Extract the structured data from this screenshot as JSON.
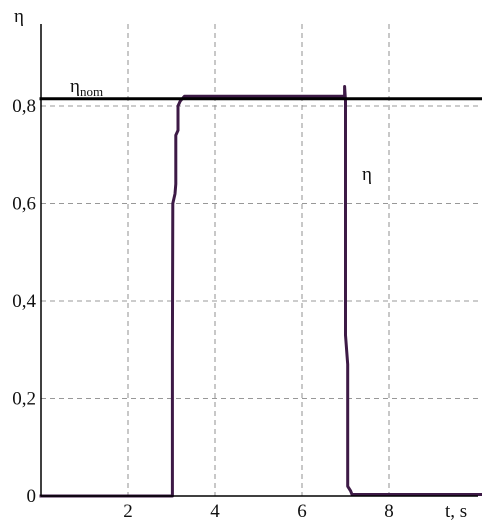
{
  "chart_data": {
    "type": "line",
    "ylabel": "η",
    "xlabel": "t, s",
    "xlim": [
      0,
      10.2
    ],
    "ylim": [
      0,
      0.85
    ],
    "x_ticks": [
      {
        "value": 2,
        "label": "2"
      },
      {
        "value": 4,
        "label": "4"
      },
      {
        "value": 6,
        "label": "6"
      },
      {
        "value": 8,
        "label": "8"
      }
    ],
    "y_ticks": [
      {
        "value": 0,
        "label": "0"
      },
      {
        "value": 0.2,
        "label": "0,2"
      },
      {
        "value": 0.4,
        "label": "0,4"
      },
      {
        "value": 0.6,
        "label": "0,6"
      },
      {
        "value": 0.8,
        "label": "0,8"
      }
    ],
    "grid": true,
    "series": [
      {
        "name": "η",
        "color": "#3d1a46",
        "points": [
          [
            0,
            0
          ],
          [
            3.02,
            0
          ],
          [
            3.02,
            0.3
          ],
          [
            3.03,
            0.6
          ],
          [
            3.08,
            0.62
          ],
          [
            3.1,
            0.64
          ],
          [
            3.1,
            0.74
          ],
          [
            3.15,
            0.75
          ],
          [
            3.15,
            0.8
          ],
          [
            3.2,
            0.81
          ],
          [
            3.3,
            0.82
          ],
          [
            6.98,
            0.82
          ],
          [
            6.98,
            0.84
          ],
          [
            7.0,
            0.81
          ],
          [
            7.0,
            0.33
          ],
          [
            7.05,
            0.27
          ],
          [
            7.05,
            0.02
          ],
          [
            7.12,
            0.01
          ],
          [
            7.15,
            0.003
          ],
          [
            10.2,
            0.003
          ]
        ]
      },
      {
        "name": "η",
        "subscript": "nom",
        "color": "#000000",
        "points": [
          [
            0,
            0.815
          ],
          [
            10.2,
            0.815
          ]
        ]
      }
    ],
    "annotations": [
      {
        "text": "η",
        "subscript": "nom"
      },
      {
        "text": "η"
      }
    ]
  }
}
